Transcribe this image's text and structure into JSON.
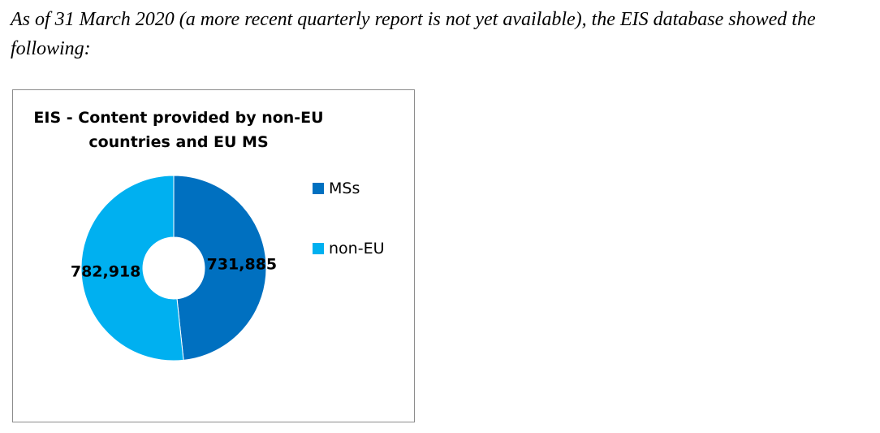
{
  "intro_text": "As of 31 March 2020 (a more recent quarterly report is not yet available), the EIS database showed the following:",
  "chart_data": {
    "type": "pie",
    "title": "EIS - Content provided by non-EU countries and EU MS",
    "donut": true,
    "slices": [
      {
        "label": "MSs",
        "value": 731885,
        "value_label": "731,885",
        "color": "#0070c0"
      },
      {
        "label": "non-EU",
        "value": 782918,
        "value_label": "782,918",
        "color": "#00b0f0"
      }
    ],
    "legend_position": "right"
  }
}
